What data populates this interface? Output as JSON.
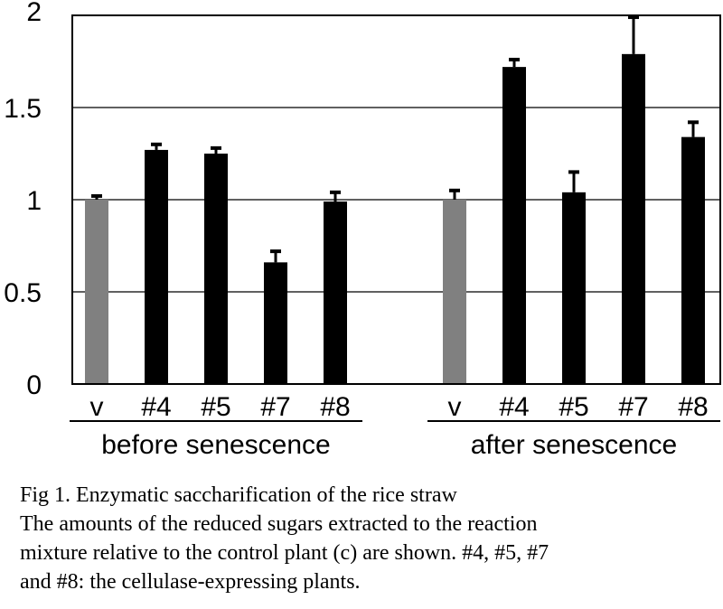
{
  "chart_data": {
    "type": "bar",
    "ylim": [
      0,
      2
    ],
    "yticks": [
      {
        "value": 0,
        "label": "0"
      },
      {
        "value": 0.5,
        "label": "0.5"
      },
      {
        "value": 1,
        "label": "1"
      },
      {
        "value": 1.5,
        "label": "1.5"
      },
      {
        "value": 2,
        "label": "2"
      }
    ],
    "grid": true,
    "colors": {
      "control": "#808080",
      "transgenic": "#000000"
    },
    "groups": [
      {
        "label": "before senescence",
        "bars": [
          {
            "category": "v",
            "value": 1.0,
            "error": 0.02,
            "kind": "control"
          },
          {
            "category": "#4",
            "value": 1.27,
            "error": 0.03,
            "kind": "transgenic"
          },
          {
            "category": "#5",
            "value": 1.25,
            "error": 0.03,
            "kind": "transgenic"
          },
          {
            "category": "#7",
            "value": 0.66,
            "error": 0.06,
            "kind": "transgenic"
          },
          {
            "category": "#8",
            "value": 0.99,
            "error": 0.05,
            "kind": "transgenic"
          }
        ]
      },
      {
        "label": "after senescence",
        "bars": [
          {
            "category": "v",
            "value": 1.0,
            "error": 0.05,
            "kind": "control"
          },
          {
            "category": "#4",
            "value": 1.72,
            "error": 0.04,
            "kind": "transgenic"
          },
          {
            "category": "#5",
            "value": 1.04,
            "error": 0.11,
            "kind": "transgenic"
          },
          {
            "category": "#7",
            "value": 1.79,
            "error": 0.2,
            "kind": "transgenic"
          },
          {
            "category": "#8",
            "value": 1.34,
            "error": 0.08,
            "kind": "transgenic"
          }
        ]
      }
    ]
  },
  "caption": {
    "line1": "Fig 1. Enzymatic saccharification of the rice straw",
    "line2": "The amounts of the reduced sugars extracted to the reaction",
    "line3": "mixture relative to the control plant (c) are shown. #4, #5, #7",
    "line4": "and #8: the cellulase-expressing plants."
  }
}
